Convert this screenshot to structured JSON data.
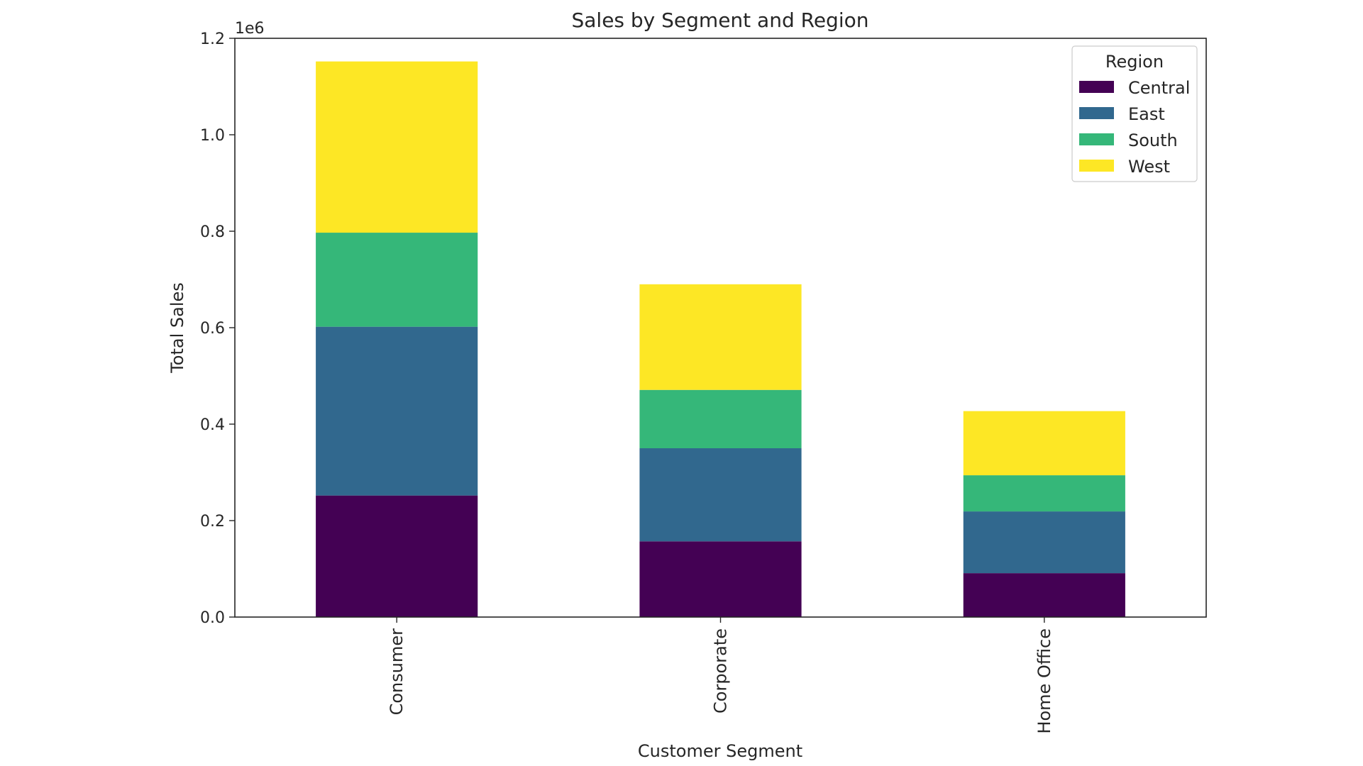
{
  "chart_data": {
    "type": "bar",
    "stacked": true,
    "title": "Sales by Segment and Region",
    "xlabel": "Customer Segment",
    "ylabel": "Total Sales",
    "y_scale_label": "1e6",
    "ylim": [
      0,
      1.2
    ],
    "yticks": [
      "0.0",
      "0.2",
      "0.4",
      "0.6",
      "0.8",
      "1.0",
      "1.2"
    ],
    "ytick_values": [
      0,
      0.2,
      0.4,
      0.6,
      0.8,
      1.0,
      1.2
    ],
    "categories": [
      "Consumer",
      "Corporate",
      "Home Office"
    ],
    "legend_title": "Region",
    "legend_position": "top-right",
    "series": [
      {
        "name": "Central",
        "color": "#440154",
        "values": [
          0.252,
          0.157,
          0.091
        ]
      },
      {
        "name": "East",
        "color": "#31688e",
        "values": [
          0.35,
          0.193,
          0.128
        ]
      },
      {
        "name": "South",
        "color": "#35b779",
        "values": [
          0.195,
          0.121,
          0.075
        ]
      },
      {
        "name": "West",
        "color": "#fde725",
        "values": [
          0.355,
          0.219,
          0.133
        ]
      }
    ]
  }
}
